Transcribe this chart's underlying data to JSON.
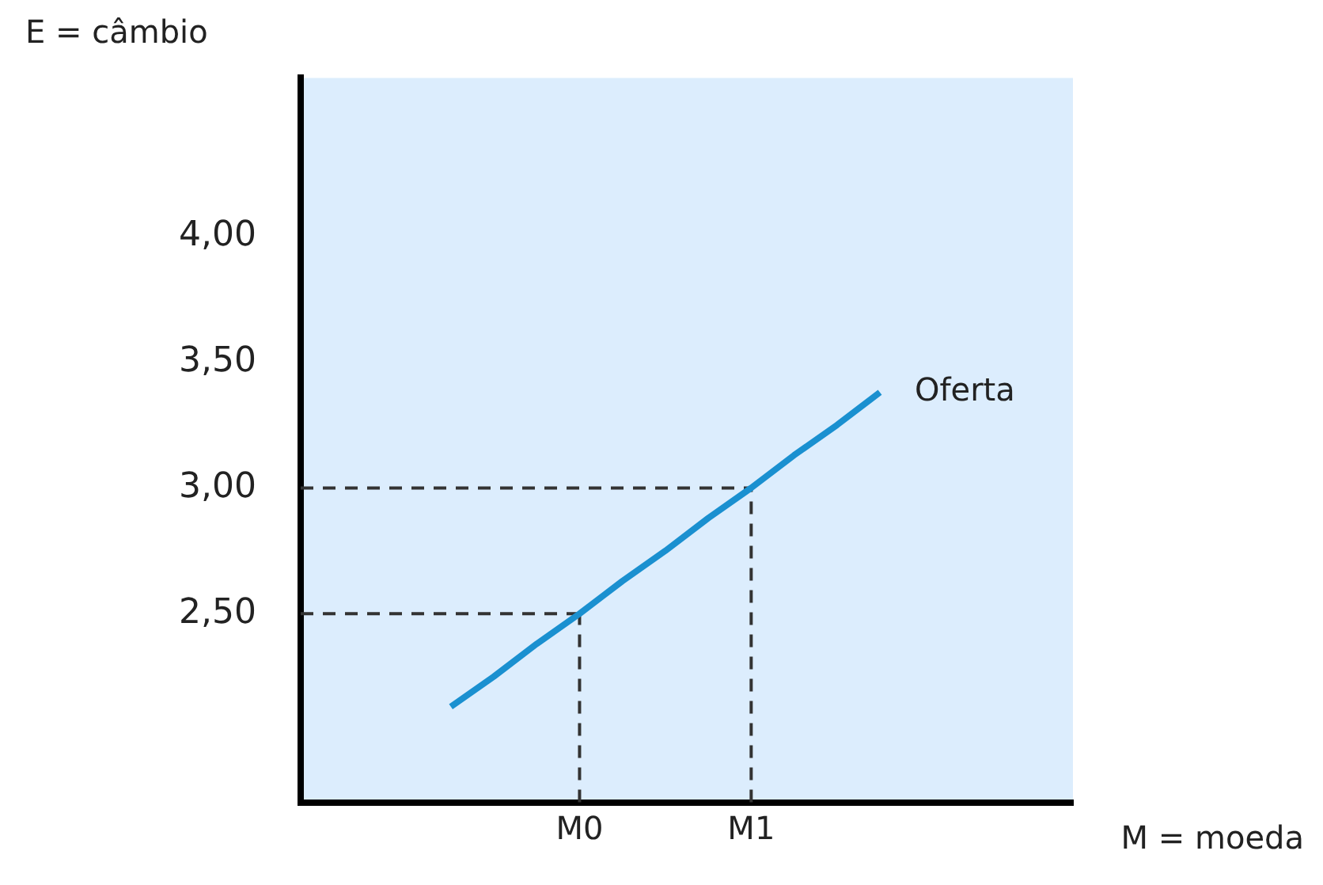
{
  "chart_data": {
    "type": "line",
    "xlabel": "M = moeda",
    "ylabel": "E = câmbio",
    "categories": [
      null,
      null,
      null,
      null,
      null,
      null,
      "M0",
      null,
      null,
      null,
      "M1",
      null,
      null,
      null,
      null,
      null,
      null,
      null
    ],
    "ylim": [
      1.75,
      4.63
    ],
    "yticks": [
      {
        "value": 2.5,
        "label": "2,50"
      },
      {
        "value": 3,
        "label": "3,00"
      },
      {
        "value": 3.5,
        "label": "3,50"
      },
      {
        "value": 4,
        "label": "4,00"
      }
    ],
    "series": [
      {
        "name": "Oferta",
        "color": "#1a90d0",
        "values": [
          null,
          null,
          null,
          2.13,
          2.25,
          2.38,
          2.5,
          2.63,
          2.75,
          2.88,
          3.0,
          3.13,
          3.25,
          3.38,
          null,
          null,
          null,
          null
        ],
        "line_style": "solid",
        "marker": "none"
      }
    ],
    "ref_lines": [
      {
        "axis": "y",
        "value": 2.5,
        "color": "#333333",
        "line_style": "dashed"
      },
      {
        "axis": "y",
        "value": 3.0,
        "color": "#333333",
        "line_style": "dashed"
      },
      {
        "axis": "x",
        "value": "M0",
        "color": "#333333",
        "line_style": "dashed"
      },
      {
        "axis": "x",
        "value": "M1",
        "color": "#333333",
        "line_style": "dashed"
      }
    ]
  }
}
